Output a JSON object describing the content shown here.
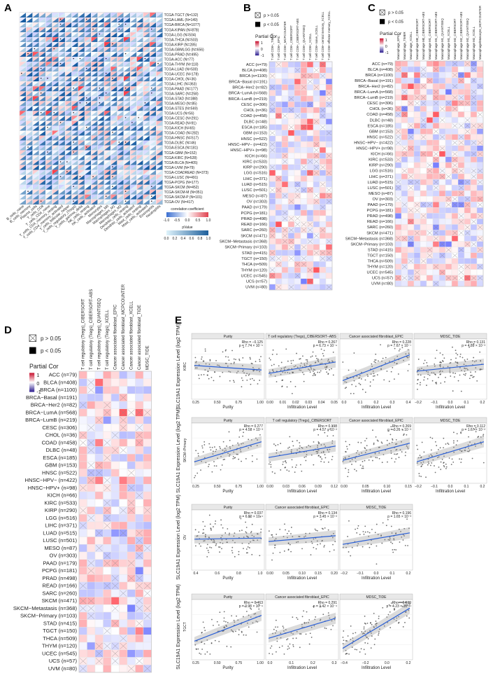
{
  "figure": {
    "panel_labels": [
      "A",
      "B",
      "C",
      "D",
      "E"
    ]
  },
  "panelA": {
    "cancers": [
      "TCGA-TGCT (N=132)",
      "TCGA-LAML (N=149)",
      "TCGA-BRCA (N=1077)",
      "TCGA-KIPAN (N=878)",
      "TCGA-LGG (N=504)",
      "TCGA-THCA (N=503)",
      "TCGA-KIRP (N=285)",
      "TCGA-GBMLGG (N=656)",
      "TCGA-PRAD (N=495)",
      "TCGA-ACC (N=77)",
      "TCGA-THYM (N=118)",
      "TCGA-LUAD (N=500)",
      "TCGA-UCEC (N=178)",
      "TCGA-CHOL (N=36)",
      "TCGA-LIHC (N=363)",
      "TCGA-PAAD (N=177)",
      "TCGA-SARC (N=258)",
      "TCGA-STAD (N=388)",
      "TCGA-MESO (N=85)",
      "TCGA-STES (N=569)",
      "TCGA-UCS (N=56)",
      "TCGA-CESC (N=291)",
      "TCGA-READ (N=91)",
      "TCGA-KICH (N=65)",
      "TCGA-COAD (N=282)",
      "TCGA-HNSC (N=517)",
      "TCGA-DLBC (N=46)",
      "TCGA-ESCA (N=181)",
      "TCGA-GBM (N=152)",
      "TCGA-KIRC (N=528)",
      "TCGA-BLCA (N=405)",
      "TCGA-UVM (N=79)",
      "TCGA-COADREAD (N=373)",
      "TCGA-LUSC (N=491)",
      "TCGA-PCPG (N=177)",
      "TCGA-SKCM (N=452)",
      "TCGA-SKCM-M (N=351)",
      "TCGA-SKCM-P (N=101)",
      "TCGA-OV (N=417)"
    ],
    "cells": [
      "B_cells_naive",
      "B_cells_memory",
      "Plasma_cells",
      "T_cells_CD8",
      "T_cells_CD4_naive",
      "T_cells_CD4_memory_resting",
      "T_cells_CD4_memory_activated",
      "T_cells_follicular_helper",
      "T_cells_regulatory_(Tregs)",
      "T_cells_gamma_delta",
      "NK_cells_resting",
      "NK_cells_activated",
      "Monocytes",
      "Macrophages_M0",
      "Macrophages_M1",
      "Macrophages_M2",
      "Dendritic_cells_resting",
      "Dendritic_cells_activated",
      "Mast_cells_resting",
      "Mast_cells_activated",
      "Eosinophils",
      "Neutrophils"
    ],
    "legend_corr_title": "correlation coefficient",
    "legend_corr_ticks": [
      "-1.0",
      "-0.5",
      "0.0",
      "0.5",
      "1.0"
    ],
    "legend_p_title": "pValue",
    "legend_p_ticks": [
      "0.0",
      "0.2",
      "0.4",
      "0.6",
      "0.8",
      "1.0"
    ],
    "colors": {
      "neg": "#3b6fd1",
      "pos": "#e0424f",
      "p_low": "#1e5f9b",
      "p_high": "#dff3fb"
    }
  },
  "panelB": {
    "legend_ns": "p > 0.05",
    "legend_sig": "p < 0.05",
    "legend_title": "Partial  Cor",
    "legend_ticks": [
      "1",
      "0",
      "-1"
    ],
    "methods": [
      "T cell CD8+_TIMER",
      "T cell CD8+_EPIC",
      "T cell CD8+_MCPCOUNTER",
      "T cell CD8+_CIBERSORT",
      "T cell CD8+_CIBERSORT-ABS",
      "T cell CD8+_QUANTISEQ",
      "T cell CD8+_XCELL",
      "T cell CD8+ naive_XCELL",
      "T cell CD8+ central memory_XCELL",
      "T cell CD8+ effector memory_XCELL"
    ]
  },
  "panelC": {
    "legend_ns": "p > 0.05",
    "legend_sig": "p < 0.05",
    "legend_title": "Partial  Cor",
    "legend_ticks": [
      "1",
      "0",
      "-1"
    ],
    "methods": [
      "Macrophage_EPIC",
      "Macrophage_TIMER",
      "Macrophage_XCELL",
      "Macrophage M0_CIBERSORT",
      "Macrophage M0_CIBERSORT-ABS",
      "Macrophage M1_CIBERSORT",
      "Macrophage M1_CIBERSORT-ABS",
      "Macrophage M1_QUANTISEQ",
      "Macrophage M1_XCELL",
      "Macrophage M2_CIBERSORT",
      "Macrophage M2_CIBERSORT-ABS",
      "Macrophage M2_QUANTISEQ",
      "Macrophage M2_XCELL",
      "Macrophage/Monocyte_MCPCOUNTER"
    ]
  },
  "panelD": {
    "legend_ns": "p > 0.05",
    "legend_sig": "p < 0.05",
    "legend_title": "Partial  Cor",
    "legend_ticks": [
      "1",
      "0",
      "-1"
    ],
    "methods": [
      "T cell regulatory (Tregs)_CIBERSORT",
      "T cell regulatory (Tregs)_CIBERSORT-ABS",
      "T cell regulatory (Tregs)_QUANTISEQ",
      "T cell regulatory (Tregs)_XCELL",
      "Cancer associated fibroblast_EPIC",
      "Cancer associated fibroblast_MCPCOUNTER",
      "Cancer associated fibroblast_XCELL",
      "Cancer associated fibroblast_TIDE",
      "MDSC_TIDE"
    ]
  },
  "cancers_BCD": [
    "ACC (n=79)",
    "BLCA (n=408)",
    "BRCA (n=1100)",
    "BRCA−Basal (n=191)",
    "BRCA−Her2 (n=82)",
    "BRCA−LumA (n=568)",
    "BRCA−LumB (n=219)",
    "CESC (n=306)",
    "CHOL (n=36)",
    "COAD (n=458)",
    "DLBC (n=48)",
    "ESCA (n=185)",
    "GBM (n=153)",
    "HNSC (n=522)",
    "HNSC−HPV− (n=422)",
    "HNSC−HPV+ (n=98)",
    "KICH (n=66)",
    "KIRC (n=533)",
    "KIRP (n=290)",
    "LGG (n=516)",
    "LIHC (n=371)",
    "LUAD (n=515)",
    "LUSC (n=501)",
    "MESO (n=87)",
    "OV (n=303)",
    "PAAD (n=179)",
    "PCPG (n=181)",
    "PRAD (n=498)",
    "READ (n=166)",
    "SARC (n=260)",
    "SKCM (n=471)",
    "SKCM−Metastasis (n=368)",
    "SKCM−Primary (n=103)",
    "STAD (n=415)",
    "TGCT (n=150)",
    "THCA (n=509)",
    "THYM (n=120)",
    "UCEC (n=545)",
    "UCS (n=57)",
    "UVM (n=80)"
  ],
  "panelE": {
    "ylabel": "SLC19A1 Expression Level (log2 TPM)",
    "rows": [
      {
        "cancer": "KIRC",
        "panels": [
          {
            "title": "Purity",
            "xlabel": "Purity",
            "rho": "Rho = −0.125",
            "p": "p = 7.74 × 10⁻⁵",
            "xticks": [
              "0.25",
              "0.50",
              "0.75",
              "1.00"
            ],
            "slope": -0.08
          },
          {
            "title": "T cell regulatory (Tregs)_CIBERSORT−ABS",
            "xlabel": "Infiltration Level",
            "rho": "Rho = 0.267",
            "p": "p = 6.73 × 10⁻⁹",
            "xticks": [
              "0.00",
              "0.01",
              "0.02",
              "0.03",
              "0.04",
              "0.05"
            ],
            "slope": 0.2
          },
          {
            "title": "Cancer associated fibroblast_EPIC",
            "xlabel": "Infiltration Level",
            "rho": "Rho = 0.228",
            "p": "p = 7.67 × 10⁻⁷",
            "xticks": [
              "0.0",
              "0.1",
              "0.2",
              "0.3",
              "0.4"
            ],
            "slope": 0.45
          },
          {
            "title": "MDSC_TIDE",
            "xlabel": "Infiltration Level",
            "rho": "Rho = 0.131",
            "p": "p = 4.89 × 10⁻³",
            "xticks": [
              "−0.2",
              "−0.1",
              "0.0",
              "0.1",
              "0.2"
            ],
            "slope": 0.12
          }
        ]
      },
      {
        "cancer": "SKCM−Primary",
        "panels": [
          {
            "title": "Purity",
            "xlabel": "Purity",
            "rho": "Rho = 0.277",
            "p": "p = 4.58 × 10⁻³",
            "xticks": [
              "0.25",
              "0.50",
              "0.75",
              "1.00"
            ],
            "slope": 0.35
          },
          {
            "title": "T cell regulatory (Tregs)_CIBERSORT",
            "xlabel": "Infiltration Level",
            "rho": "Rho = 0.198",
            "p": "p = 4.57 × 10⁻²",
            "xticks": [
              "0.00",
              "0.03",
              "0.06",
              "0.09",
              "0.12"
            ],
            "slope": 0.2
          },
          {
            "title": "Cancer associated fibroblast_EPIC",
            "xlabel": "Infiltration Level",
            "rho": "Rho = 0.269",
            "p": "p = 3.26 × 10⁻³",
            "xticks": [
              "0.00",
              "0.05",
              "0.10",
              "0.15"
            ],
            "slope": 0.3
          },
          {
            "title": "MDSC_TIDE",
            "xlabel": "Infiltration Level",
            "rho": "Rho = 0.112",
            "p": "p = 1.67 × 10⁻²",
            "xticks": [
              "−0.2",
              "−0.1",
              "0.0",
              "0.1",
              "0.2"
            ],
            "slope": 0.35
          }
        ]
      },
      {
        "cancer": "OV",
        "panels": [
          {
            "title": "Purity",
            "xlabel": "Purity",
            "rho": "Rho = 0.037",
            "p": "p = 6.80 × 10⁻¹",
            "xticks": [
              "0.4",
              "0.6",
              "0.8",
              "1.0"
            ],
            "slope": 0.02
          },
          {
            "title": "Cancer associated fibroblast_EPIC",
            "xlabel": "Infiltration Level",
            "rho": "Rho = 0.134",
            "p": "p = 3.45 × 10⁻²",
            "xticks": [
              "0.00",
              "0.05",
              "0.10",
              "0.15",
              "0.20"
            ],
            "slope": 0.1
          },
          {
            "title": "MDSC_TIDE",
            "xlabel": "Infiltration Level",
            "rho": "Rho = 0.196",
            "p": "p = 1.65 × 10⁻³",
            "xticks": [
              "−0.2",
              "−0.1",
              "0.0",
              "0.1",
              "0.2"
            ],
            "slope": 0.2
          }
        ]
      },
      {
        "cancer": "TGCT",
        "panels": [
          {
            "title": "Purity",
            "xlabel": "Purity",
            "rho": "Rho = 0.463",
            "p": "p = 3.98 × 10⁻⁹",
            "xticks": [
              "0.25",
              "0.50",
              "0.75",
              "1.00"
            ],
            "slope": 0.45
          },
          {
            "title": "Cancer associated fibroblast_EPIC",
            "xlabel": "Infiltration Level",
            "rho": "Rho = 0.291",
            "p": "p = 3.42 × 10⁻⁴",
            "xticks": [
              "0.0",
              "0.1",
              "0.2",
              "0.3"
            ],
            "slope": 0.35
          },
          {
            "title": "MDSC_TIDE",
            "xlabel": "Infiltration Level",
            "rho": "Rho = 0.509",
            "p": "p = 4.23 × 10⁻¹¹",
            "xticks": [
              "−0.4",
              "−0.2",
              "0.0",
              "0.2"
            ],
            "slope": 0.7
          }
        ]
      }
    ]
  }
}
